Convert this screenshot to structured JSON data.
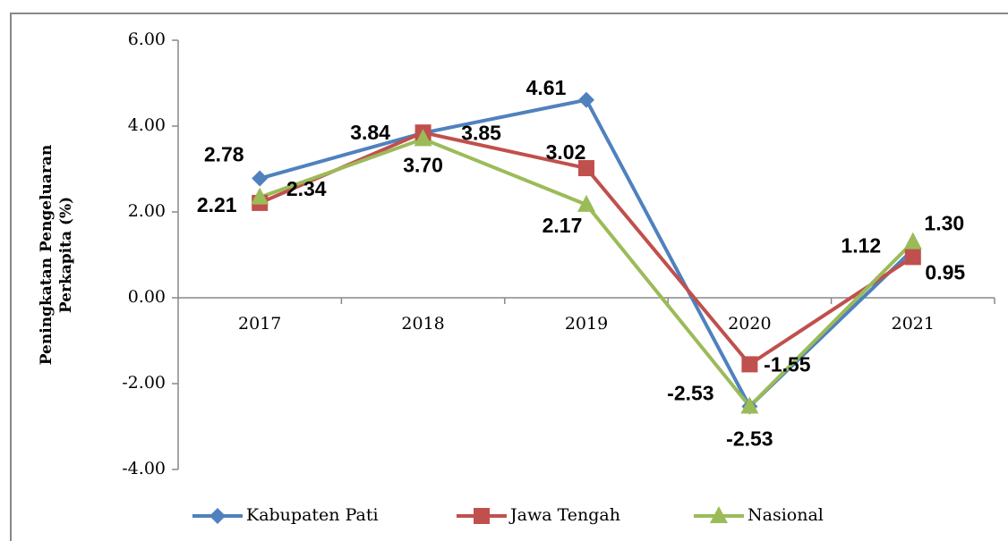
{
  "chart_data": {
    "type": "line",
    "ylabel": [
      "Peningkatan Pengeluaran",
      "Perkapita (%)"
    ],
    "categories": [
      "2017",
      "2018",
      "2019",
      "2020",
      "2021"
    ],
    "series": [
      {
        "name": "Kabupaten Pati",
        "color": "#4f81bd",
        "marker": "diamond",
        "values": [
          2.78,
          3.84,
          4.61,
          -2.53,
          1.12
        ],
        "value_labels": [
          "2.78",
          "3.84",
          "4.61",
          "-2.53",
          "1.12"
        ]
      },
      {
        "name": "Jawa Tengah",
        "color": "#c0504d",
        "marker": "square",
        "values": [
          2.21,
          3.85,
          3.02,
          -1.55,
          0.95
        ],
        "value_labels": [
          "2.21",
          "3.85",
          "3.02",
          "-1.55",
          "0.95"
        ]
      },
      {
        "name": "Nasional",
        "color": "#9bbb59",
        "marker": "triangle",
        "values": [
          2.34,
          3.7,
          2.17,
          -2.53,
          1.3
        ],
        "value_labels": [
          "2.34",
          "3.70",
          "2.17",
          "-2.53",
          "1.30"
        ]
      }
    ],
    "ylim": [
      -4,
      6
    ],
    "yticks": [
      {
        "value": -4,
        "label": "-4.00"
      },
      {
        "value": -2,
        "label": "-2.00"
      },
      {
        "value": 0,
        "label": "0.00"
      },
      {
        "value": 2,
        "label": "2.00"
      },
      {
        "value": 4,
        "label": "4.00"
      },
      {
        "value": 6,
        "label": "6.00"
      }
    ],
    "legend": "bottom"
  }
}
